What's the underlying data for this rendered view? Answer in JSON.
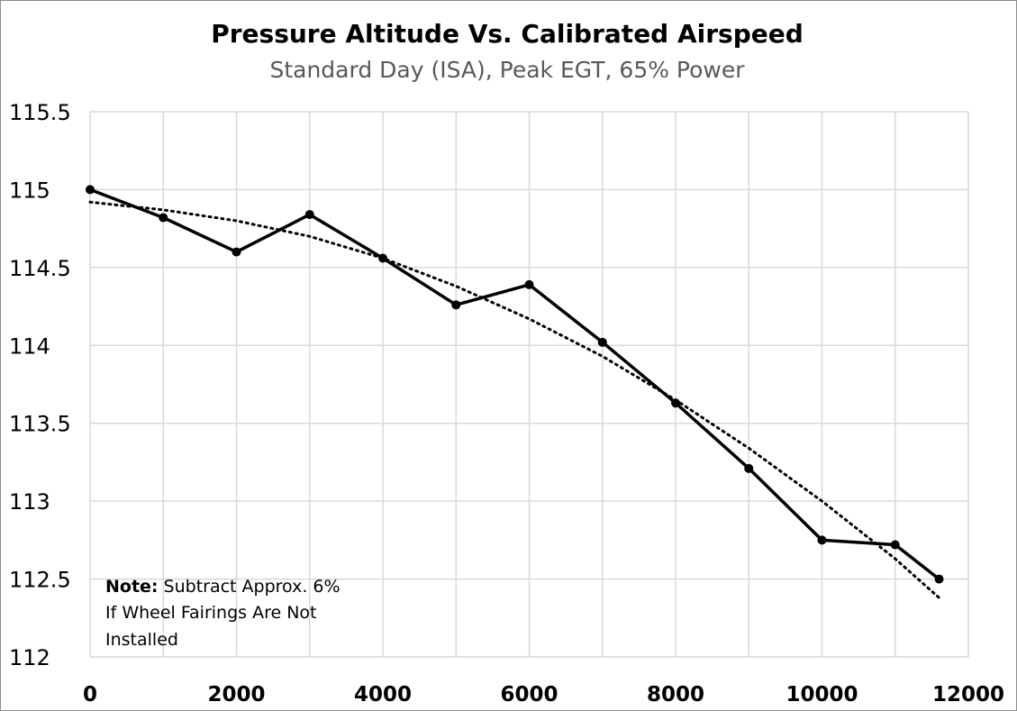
{
  "chart_data": {
    "type": "line",
    "title": "Pressure Altitude Vs. Calibrated Airspeed",
    "subtitle": "Standard Day (ISA), Peak EGT, 65% Power",
    "xlabel": "",
    "ylabel": "",
    "xlim": [
      0,
      12000
    ],
    "ylim": [
      112,
      115.5
    ],
    "x_ticks": [
      "0",
      "2000",
      "4000",
      "6000",
      "8000",
      "10000",
      "12000"
    ],
    "y_ticks": [
      "112",
      "112.5",
      "113",
      "113.5",
      "114",
      "114.5",
      "115",
      "115.5"
    ],
    "grid": true,
    "legend": "none",
    "series": [
      {
        "style": "solid",
        "color": "#000000",
        "markers": true,
        "x": [
          0,
          1000,
          2000,
          3000,
          4000,
          5000,
          6000,
          7000,
          8000,
          9000,
          10000,
          11000,
          11600
        ],
        "y": [
          115.0,
          114.82,
          114.6,
          114.84,
          114.56,
          114.26,
          114.39,
          114.02,
          113.63,
          113.21,
          112.75,
          112.72,
          112.5
        ]
      },
      {
        "style": "dotted",
        "color": "#000000",
        "markers": false,
        "x": [
          0,
          1000,
          2000,
          3000,
          4000,
          5000,
          6000,
          7000,
          8000,
          9000,
          10000,
          11000,
          11600
        ],
        "y": [
          114.92,
          114.87,
          114.8,
          114.7,
          114.56,
          114.38,
          114.17,
          113.93,
          113.65,
          113.34,
          113.0,
          112.63,
          112.38
        ]
      }
    ],
    "annotation": {
      "bold_label": "Note:",
      "line1": "Subtract Approx. 6%",
      "line2": "If Wheel Fairings Are Not",
      "line3": "Installed"
    }
  }
}
